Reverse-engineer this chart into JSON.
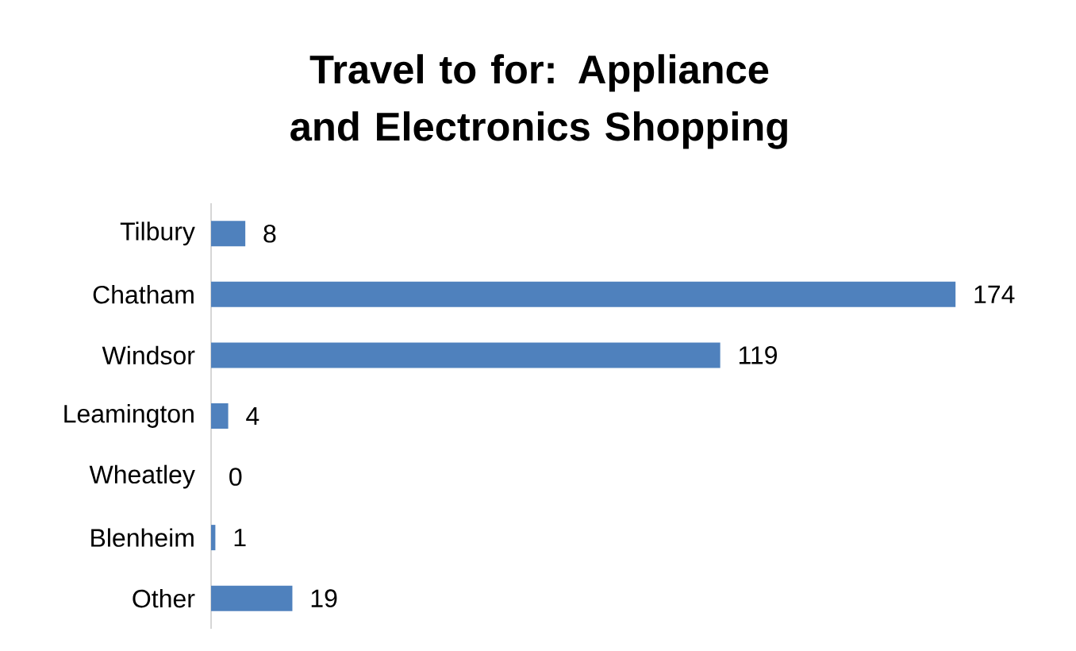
{
  "chart_data": {
    "type": "bar",
    "orientation": "horizontal",
    "title": "Travel to for: Appliance and Electronics Shopping",
    "categories": [
      "Tilbury",
      "Chatham",
      "Windsor",
      "Leamington",
      "Wheatley",
      "Blenheim",
      "Other"
    ],
    "values": [
      8,
      174,
      119,
      4,
      0,
      1,
      19
    ],
    "color": "#4f81bd",
    "data_labels": true
  }
}
